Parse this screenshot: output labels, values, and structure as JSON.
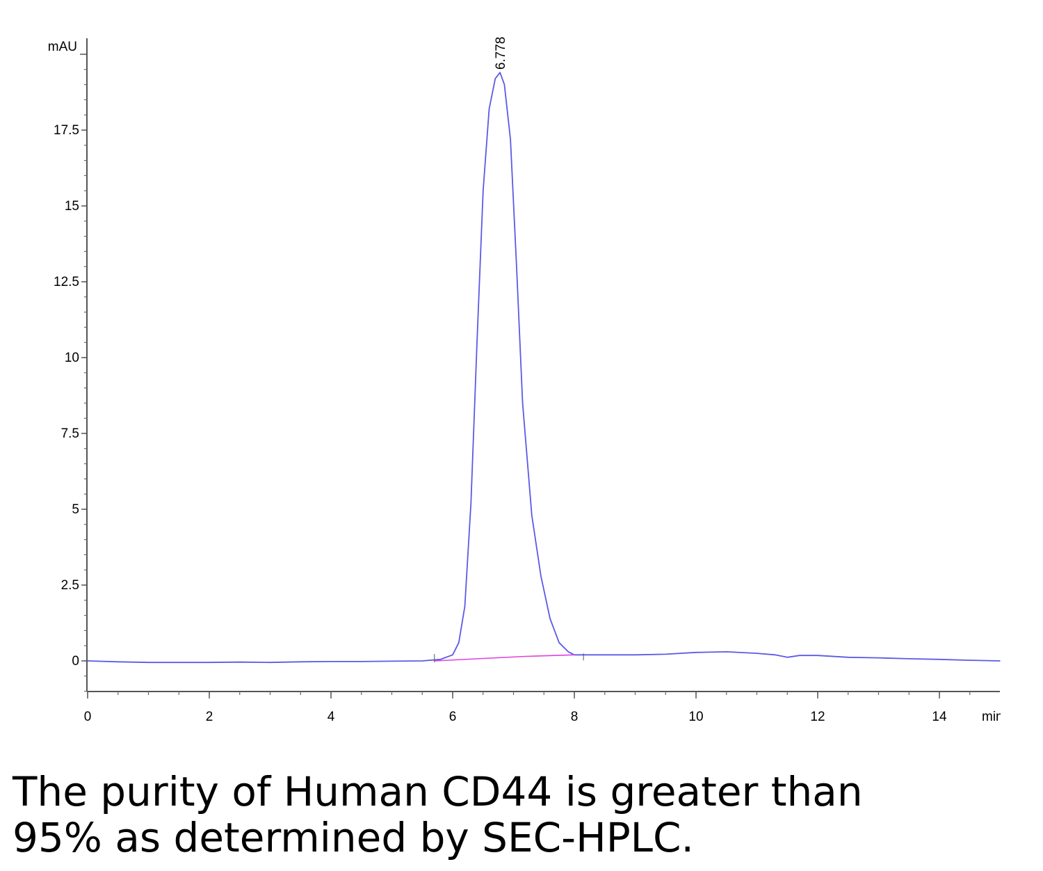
{
  "chart_data": {
    "type": "line",
    "title": "",
    "xlabel": "min",
    "ylabel": "mAU",
    "xlim": [
      0,
      15
    ],
    "ylim": [
      -1,
      20
    ],
    "x_ticks": [
      0,
      2,
      4,
      6,
      8,
      10,
      12,
      14
    ],
    "y_ticks": [
      0,
      2.5,
      5,
      7.5,
      10,
      12.5,
      15,
      17.5
    ],
    "y_tick_labels": [
      "0",
      "2.5",
      "5",
      "7.5",
      "10",
      "12.5",
      "15",
      "17.5"
    ],
    "grid": false,
    "peak_annotations": [
      {
        "x": 6.778,
        "y": 19.4,
        "label": "6.778"
      }
    ],
    "series": [
      {
        "color": "#5a5ae6",
        "x": [
          0,
          0.5,
          1,
          1.5,
          2,
          2.5,
          3,
          3.5,
          4,
          4.5,
          5,
          5.5,
          5.8,
          6.0,
          6.1,
          6.2,
          6.3,
          6.4,
          6.5,
          6.6,
          6.7,
          6.778,
          6.85,
          6.95,
          7.05,
          7.15,
          7.3,
          7.45,
          7.6,
          7.75,
          7.9,
          8.0,
          8.2,
          8.5,
          9,
          9.5,
          10,
          10.5,
          11,
          11.3,
          11.5,
          11.7,
          12,
          12.5,
          13,
          13.5,
          14,
          14.5,
          15
        ],
        "y": [
          0,
          -0.03,
          -0.05,
          -0.05,
          -0.05,
          -0.04,
          -0.05,
          -0.03,
          -0.02,
          -0.02,
          -0.01,
          0,
          0.05,
          0.2,
          0.6,
          1.8,
          5.2,
          10.5,
          15.5,
          18.2,
          19.2,
          19.4,
          19.0,
          17.2,
          13.0,
          8.5,
          4.8,
          2.8,
          1.4,
          0.6,
          0.3,
          0.2,
          0.2,
          0.2,
          0.2,
          0.22,
          0.28,
          0.3,
          0.25,
          0.2,
          0.12,
          0.18,
          0.18,
          0.12,
          0.1,
          0.07,
          0.05,
          0.02,
          0
        ]
      },
      {
        "color": "#e040e0",
        "x": [
          5.7,
          6.5,
          7.2,
          8.0
        ],
        "y": [
          0,
          0.08,
          0.15,
          0.2
        ]
      }
    ]
  },
  "caption": {
    "line1": "The purity of Human CD44 is greater than",
    "line2": "95% as determined by SEC-HPLC."
  }
}
